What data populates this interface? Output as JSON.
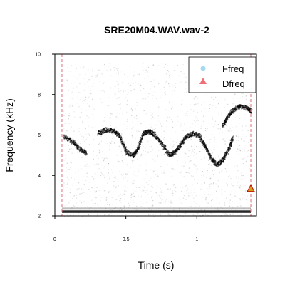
{
  "chart_data": {
    "type": "scatter",
    "subtype": "spectrogram",
    "title": "SRE20M04.WAV.wav-2",
    "xlabel": "Time (s)",
    "ylabel": "Frequency (kHz)",
    "xlim": [
      0,
      1.42
    ],
    "ylim": [
      2,
      10
    ],
    "x_ticks": [
      0,
      0.5,
      1
    ],
    "x_tick_labels": [
      "0",
      "0.5",
      "1"
    ],
    "y_ticks": [
      2,
      4,
      6,
      8,
      10
    ],
    "y_tick_labels": [
      "2",
      "4",
      "6",
      "8",
      "10"
    ],
    "grid": false,
    "legend_position": "top-right",
    "series": [
      {
        "name": "Ffreq",
        "marker": "circle",
        "color": "#a6d8ee",
        "points": []
      },
      {
        "name": "Dfreq",
        "marker": "triangle",
        "color": "#f26d78",
        "points": [
          {
            "x": 1.38,
            "y": 3.35
          }
        ]
      }
    ],
    "selection_markers": {
      "color": "#e0707a",
      "times": [
        0.05,
        1.38
      ]
    },
    "energy_traces": [
      {
        "points": [
          [
            0.06,
            5.95
          ],
          [
            0.12,
            5.7
          ],
          [
            0.17,
            5.35
          ],
          [
            0.22,
            5.1
          ]
        ]
      },
      {
        "points": [
          [
            0.3,
            6.1
          ],
          [
            0.36,
            6.3
          ],
          [
            0.42,
            6.2
          ],
          [
            0.46,
            5.9
          ],
          [
            0.5,
            5.2
          ],
          [
            0.55,
            5.0
          ],
          [
            0.58,
            5.3
          ],
          [
            0.62,
            6.1
          ],
          [
            0.66,
            6.2
          ],
          [
            0.7,
            6.05
          ]
        ]
      },
      {
        "points": [
          [
            0.7,
            6.0
          ],
          [
            0.75,
            5.6
          ],
          [
            0.8,
            5.05
          ],
          [
            0.84,
            5.15
          ],
          [
            0.88,
            5.5
          ],
          [
            0.92,
            5.95
          ],
          [
            0.97,
            6.1
          ],
          [
            1.02,
            6.0
          ]
        ]
      },
      {
        "points": [
          [
            1.02,
            5.9
          ],
          [
            1.06,
            5.4
          ],
          [
            1.1,
            4.85
          ],
          [
            1.14,
            4.55
          ],
          [
            1.18,
            4.8
          ],
          [
            1.22,
            5.3
          ],
          [
            1.25,
            5.9
          ]
        ]
      },
      {
        "points": [
          [
            1.18,
            6.5
          ],
          [
            1.21,
            6.9
          ],
          [
            1.25,
            7.25
          ],
          [
            1.3,
            7.45
          ],
          [
            1.35,
            7.35
          ],
          [
            1.38,
            7.2
          ]
        ]
      }
    ],
    "noise_band": {
      "y": 2.2,
      "x_start": 0.05,
      "x_end": 1.38
    }
  }
}
